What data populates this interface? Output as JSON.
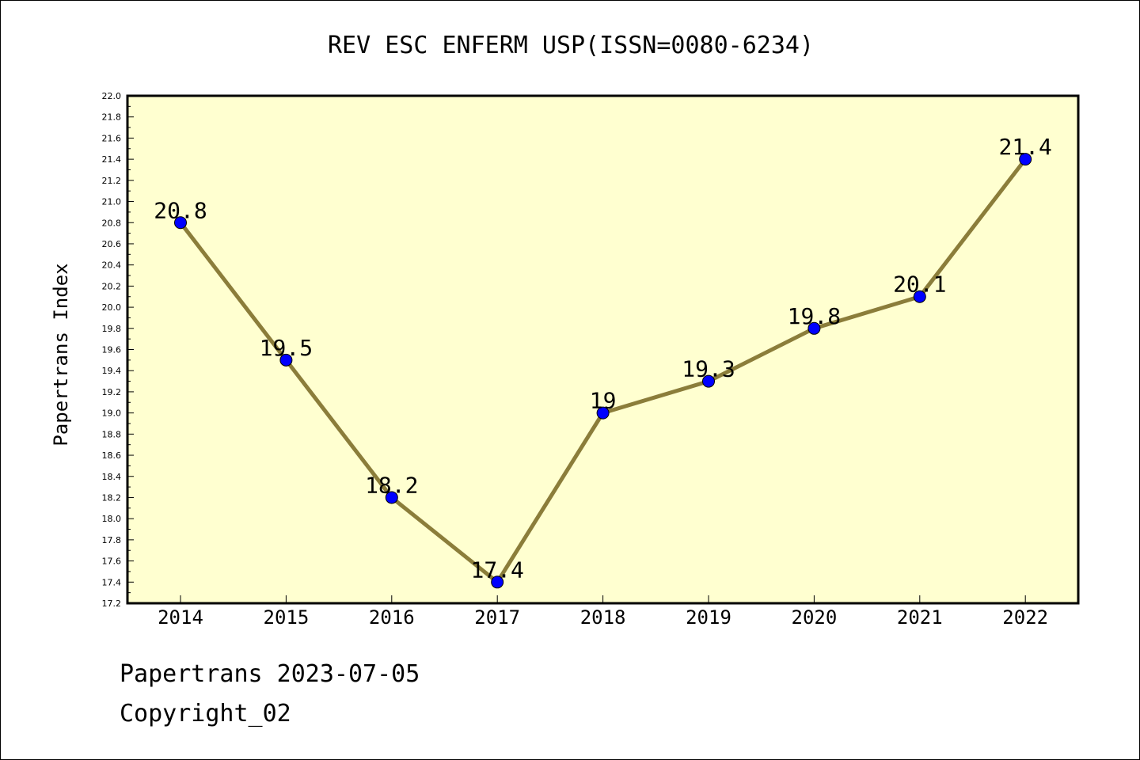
{
  "chart_data": {
    "type": "line",
    "title": "REV ESC ENFERM USP(ISSN=0080-6234)",
    "xlabel": "",
    "ylabel": "Papertrans Index",
    "categories": [
      "2014",
      "2015",
      "2016",
      "2017",
      "2018",
      "2019",
      "2020",
      "2021",
      "2022"
    ],
    "series": [
      {
        "values": [
          20.8,
          19.5,
          18.2,
          17.4,
          19.0,
          19.3,
          19.8,
          20.1,
          21.4
        ]
      }
    ],
    "data_labels": [
      "20.8",
      "19.5",
      "18.2",
      "17.4",
      "19",
      "19.3",
      "19.8",
      "20.1",
      "21.4"
    ],
    "ylim": [
      17.2,
      22.0
    ],
    "ytick_step": 0.2,
    "grid": false,
    "line_color": "#8b7d3a",
    "marker_color": "#0000ff",
    "plot_background": "#ffffd0"
  },
  "footer": {
    "date_line": "Papertrans 2023-07-05",
    "copyright": "Copyright_02"
  }
}
